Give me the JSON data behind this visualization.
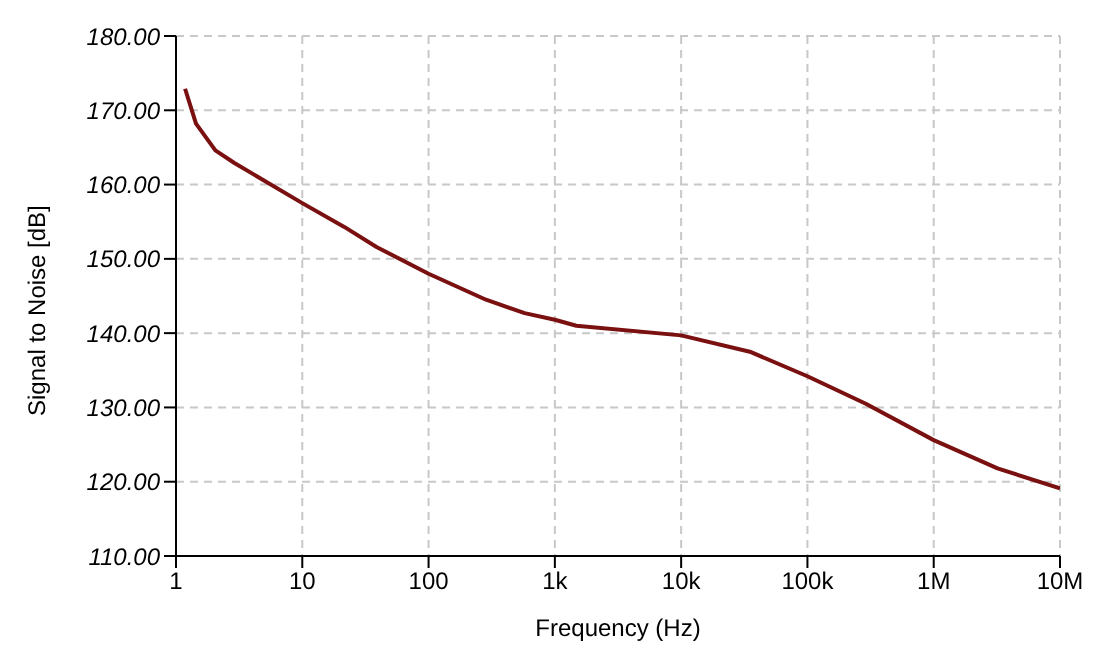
{
  "chart_data": {
    "type": "line",
    "xlabel": "Frequency (Hz)",
    "ylabel": "Signal to Noise [dB]",
    "log": "x",
    "grid": true,
    "legend": false,
    "marker": "none",
    "line_style": "solid",
    "xlim": [
      1,
      10000000
    ],
    "ylim": [
      110,
      180
    ],
    "xticks": [
      {
        "value": 1,
        "label": "1"
      },
      {
        "value": 10,
        "label": "10"
      },
      {
        "value": 100,
        "label": "100"
      },
      {
        "value": 1000,
        "label": "1k"
      },
      {
        "value": 10000,
        "label": "10k"
      },
      {
        "value": 100000,
        "label": "100k"
      },
      {
        "value": 1000000,
        "label": "1M"
      },
      {
        "value": 10000000,
        "label": "10M"
      }
    ],
    "yticks": [
      {
        "value": 110,
        "label": "110.00"
      },
      {
        "value": 120,
        "label": "120.00"
      },
      {
        "value": 130,
        "label": "130.00"
      },
      {
        "value": 140,
        "label": "140.00"
      },
      {
        "value": 150,
        "label": "150.00"
      },
      {
        "value": 160,
        "label": "160.00"
      },
      {
        "value": 170,
        "label": "170.00"
      },
      {
        "value": 180,
        "label": "180.00"
      }
    ],
    "x": [
      1.18,
      1.44,
      2.05,
      2.9,
      10,
      21.5,
      38.7,
      100,
      285,
      576,
      1000,
      1480,
      10000,
      35000,
      100000,
      290000,
      1000000,
      3200000,
      10000000
    ],
    "series": [
      {
        "color": "#7a1010",
        "values": [
          172.9,
          168.2,
          164.6,
          162.9,
          157.5,
          154.3,
          151.6,
          148.0,
          144.5,
          142.7,
          141.8,
          141.0,
          139.7,
          137.5,
          134.2,
          130.5,
          125.6,
          121.8,
          119.1
        ]
      }
    ]
  }
}
